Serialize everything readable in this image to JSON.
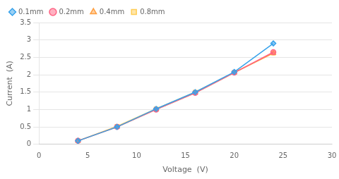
{
  "chart_data": {
    "type": "line",
    "xlabel": "Voltage  (V)",
    "ylabel": "Current  (A)",
    "x": [
      4,
      8,
      12,
      16,
      20,
      24
    ],
    "series": [
      {
        "name": "0.1mm",
        "values": [
          0.1,
          0.5,
          1.02,
          1.5,
          2.08,
          2.9
        ],
        "marker": "diamond",
        "line_style": "solid"
      },
      {
        "name": "0.2mm",
        "values": [
          0.1,
          0.5,
          1.0,
          1.48,
          2.06,
          2.65
        ],
        "marker": "circle",
        "line_style": "solid"
      },
      {
        "name": "0.4mm",
        "values": [
          0.1,
          0.5,
          1.0,
          1.48,
          2.06,
          2.62
        ],
        "marker": "triangle",
        "line_style": "solid"
      },
      {
        "name": "0.8mm",
        "values": [
          0.1,
          0.52,
          1.02,
          1.5,
          2.07,
          2.62
        ],
        "marker": "square",
        "line_style": "solid"
      }
    ],
    "xlim": [
      0,
      30
    ],
    "xticks": [
      0,
      5,
      10,
      15,
      20,
      25,
      30
    ],
    "ylim": [
      0,
      3.5
    ],
    "yticks": [
      0,
      0.5,
      1,
      1.5,
      2,
      2.5,
      3,
      3.5
    ],
    "grid": "y",
    "legend": "upper left"
  }
}
